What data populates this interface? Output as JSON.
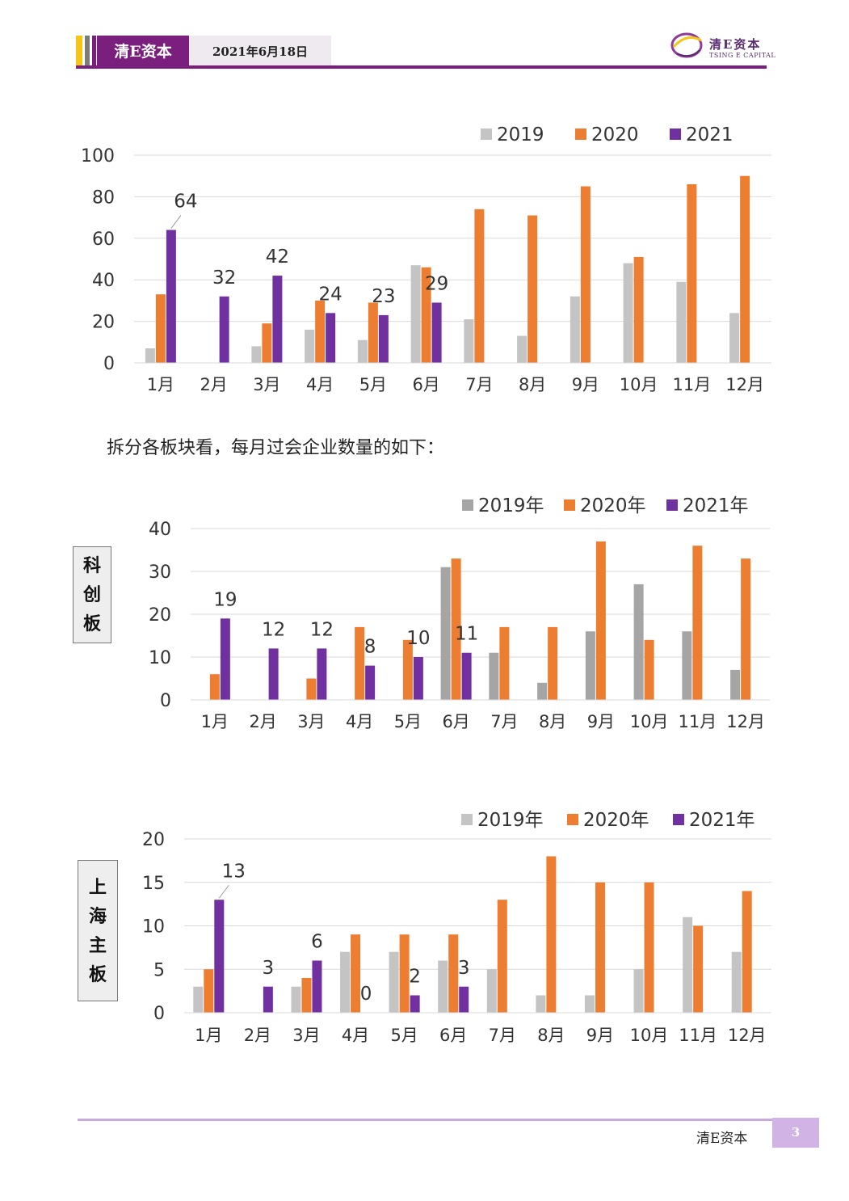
{
  "header": {
    "title": "清E资本",
    "date": "2021年6月18日",
    "logo_text": "清E资本",
    "logo_sub": "TSING E CAPITAL",
    "colors": {
      "stripe_1": "#f5c518",
      "stripe_2": "#7b7b7b",
      "stripe_3": "#7b1f7e",
      "title_bg": "#7b1f7e"
    }
  },
  "paragraph": "拆分各板块看，每月过会企业数量的如下：",
  "section_labels": {
    "star_market": [
      "科",
      "创",
      "板"
    ],
    "sh_main": [
      "上",
      "海",
      "主",
      "板"
    ]
  },
  "footer": {
    "text": "清E资本",
    "page": "3"
  },
  "chart_data": [
    {
      "type": "bar",
      "categories": [
        "1月",
        "2月",
        "3月",
        "4月",
        "5月",
        "6月",
        "7月",
        "8月",
        "9月",
        "10月",
        "11月",
        "12月"
      ],
      "series": [
        {
          "name": "2019",
          "color": "#c4c4c4",
          "values": [
            7,
            0,
            8,
            16,
            11,
            47,
            21,
            13,
            32,
            48,
            39,
            24
          ]
        },
        {
          "name": "2020",
          "color": "#ed7d31",
          "values": [
            33,
            0,
            19,
            30,
            29,
            46,
            74,
            71,
            85,
            51,
            86,
            90
          ]
        },
        {
          "name": "2021",
          "color": "#7030a0",
          "values": [
            64,
            32,
            42,
            24,
            23,
            29,
            null,
            null,
            null,
            null,
            null,
            null
          ]
        }
      ],
      "data_labels": [
        "64",
        "32",
        "42",
        "24",
        "23",
        "29"
      ],
      "ylim": [
        0,
        100
      ],
      "yticks": [
        "0",
        "20",
        "40",
        "60",
        "80",
        "100"
      ],
      "legend": "top-right",
      "grid": true
    },
    {
      "type": "bar",
      "categories": [
        "1月",
        "2月",
        "3月",
        "4月",
        "5月",
        "6月",
        "7月",
        "8月",
        "9月",
        "10月",
        "11月",
        "12月"
      ],
      "series": [
        {
          "name": "2019年",
          "color": "#a5a5a5",
          "values": [
            0,
            0,
            0,
            0,
            0,
            31,
            11,
            4,
            16,
            27,
            16,
            7
          ]
        },
        {
          "name": "2020年",
          "color": "#ed7d31",
          "values": [
            6,
            0,
            5,
            17,
            14,
            33,
            17,
            17,
            37,
            14,
            36,
            33
          ]
        },
        {
          "name": "2021年",
          "color": "#7030a0",
          "values": [
            19,
            12,
            12,
            8,
            10,
            11,
            null,
            null,
            null,
            null,
            null,
            null
          ]
        }
      ],
      "data_labels": [
        "19",
        "12",
        "12",
        "8",
        "10",
        "11"
      ],
      "ylim": [
        0,
        40
      ],
      "yticks": [
        "0",
        "10",
        "20",
        "30",
        "40"
      ],
      "legend": "top-right",
      "grid": true
    },
    {
      "type": "bar",
      "categories": [
        "1月",
        "2月",
        "3月",
        "4月",
        "5月",
        "6月",
        "7月",
        "8月",
        "9月",
        "10月",
        "11月",
        "12月"
      ],
      "series": [
        {
          "name": "2019年",
          "color": "#c4c4c4",
          "values": [
            3,
            0,
            3,
            7,
            7,
            6,
            5,
            2,
            2,
            5,
            11,
            7
          ]
        },
        {
          "name": "2020年",
          "color": "#ed7d31",
          "values": [
            5,
            0,
            4,
            9,
            9,
            9,
            13,
            18,
            15,
            15,
            10,
            14
          ]
        },
        {
          "name": "2021年",
          "color": "#7030a0",
          "values": [
            13,
            3,
            6,
            0,
            2,
            3,
            null,
            null,
            null,
            null,
            null,
            null
          ]
        }
      ],
      "data_labels": [
        "13",
        "3",
        "6",
        "0",
        "2",
        "3"
      ],
      "ylim": [
        0,
        20
      ],
      "yticks": [
        "0",
        "5",
        "10",
        "15",
        "20"
      ],
      "legend": "top-right",
      "grid": true
    }
  ]
}
